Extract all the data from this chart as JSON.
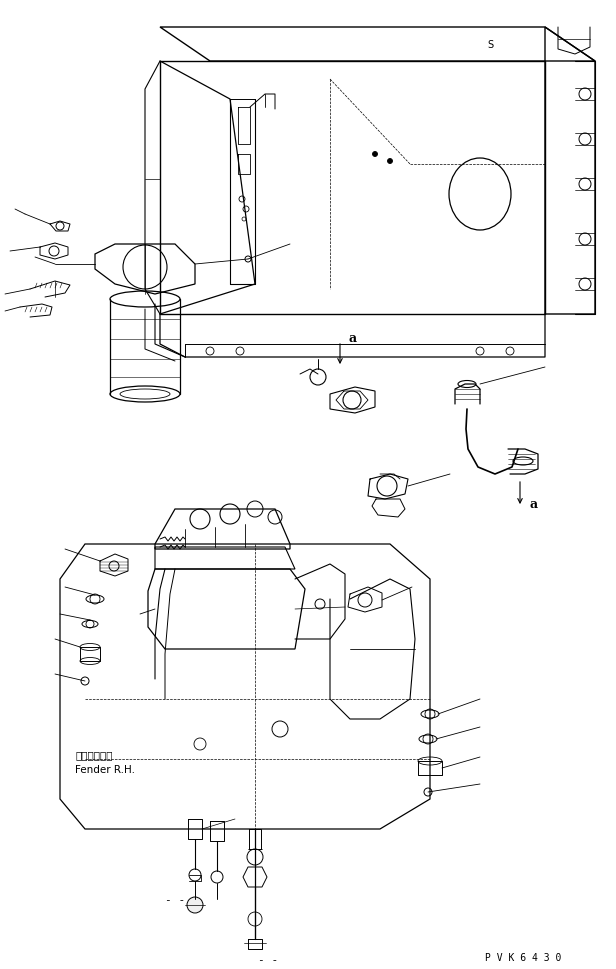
{
  "background_color": "#ffffff",
  "line_color": "#000000",
  "figure_width": 6.16,
  "figure_height": 9.7,
  "dpi": 100,
  "bottom_right_text": "P V K 6 4 3 0",
  "label_a1": "a",
  "label_a2": "a",
  "fender_jp": "フェンダ　右",
  "fender_en": "Fender R.H.",
  "text_color": "#000000"
}
